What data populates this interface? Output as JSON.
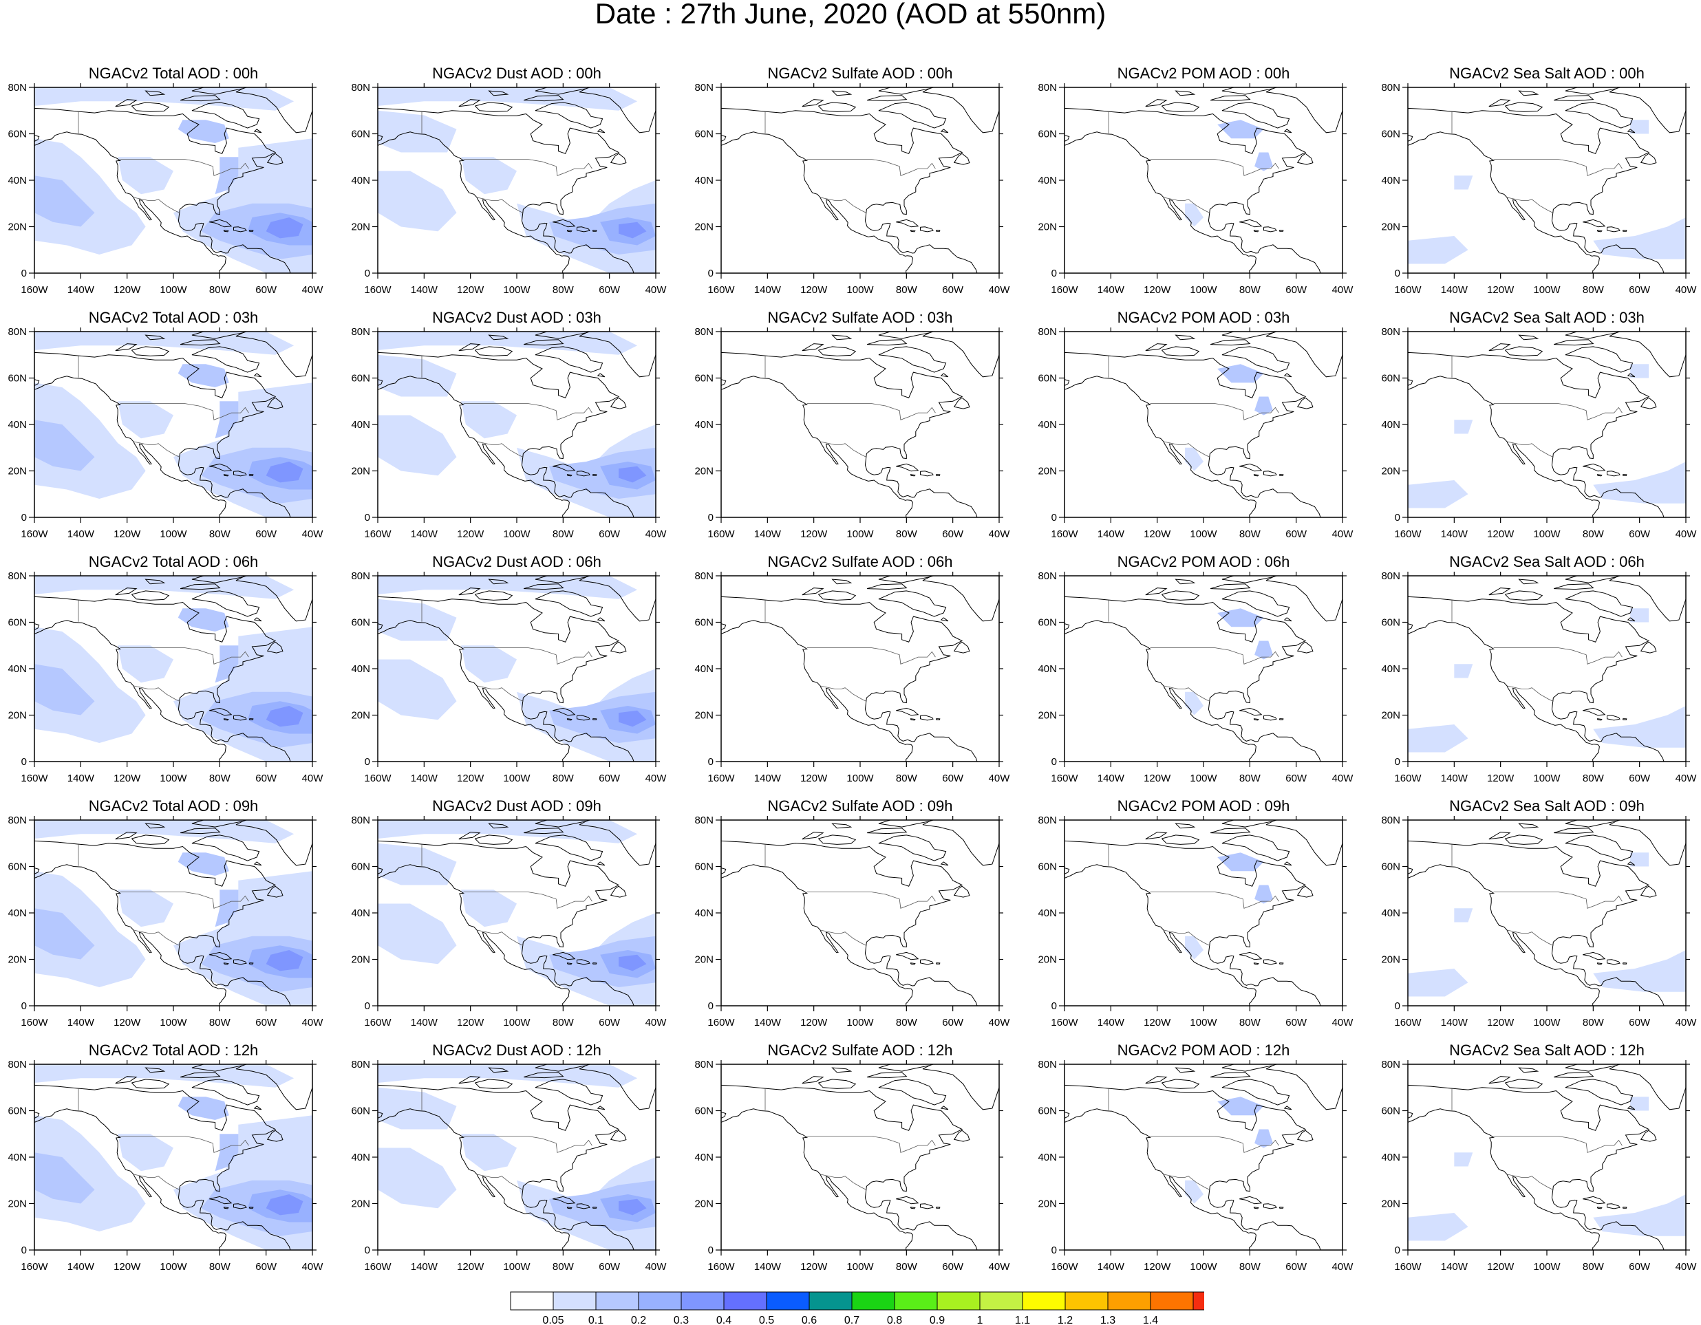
{
  "title": "Date : 27th June, 2020 (AOD at 550nm)",
  "colors": {
    "levels": [
      "#ffffff",
      "#d4e0ff",
      "#b5c8ff",
      "#98b1ff",
      "#7f96ff",
      "#6470ff",
      "#0a5cff",
      "#05948f",
      "#1ad414",
      "#5aee18",
      "#a8f020",
      "#c4f244",
      "#fdfb00",
      "#fdc400",
      "#fd9f00",
      "#fd7400",
      "#f52d10"
    ],
    "coast": "#000000"
  },
  "colorbar": {
    "labels": [
      "0.05",
      "0.1",
      "0.2",
      "0.3",
      "0.4",
      "0.5",
      "0.6",
      "0.7",
      "0.8",
      "0.9",
      "1",
      "1.1",
      "1.2",
      "1.3",
      "1.4"
    ]
  },
  "axes": {
    "lon_labels": [
      "160W",
      "140W",
      "120W",
      "100W",
      "80W",
      "60W",
      "40W"
    ],
    "lat_labels": [
      "0",
      "20N",
      "40N",
      "60N",
      "80N"
    ]
  },
  "rows": [
    {
      "hour": "00h",
      "titles": [
        "NGACv2 Total AOD : 00h",
        "NGACv2 Dust AOD : 00h",
        "NGACv2 Sulfate AOD : 00h",
        "NGACv2 POM AOD : 00h",
        "NGACv2 Sea Salt AOD : 00h"
      ]
    },
    {
      "hour": "03h",
      "titles": [
        "NGACv2 Total AOD : 03h",
        "NGACv2 Dust AOD : 03h",
        "NGACv2 Sulfate AOD : 03h",
        "NGACv2 POM AOD : 03h",
        "NGACv2 Sea Salt AOD : 03h"
      ]
    },
    {
      "hour": "06h",
      "titles": [
        "NGACv2 Total AOD : 06h",
        "NGACv2 Dust AOD : 06h",
        "NGACv2 Sulfate AOD : 06h",
        "NGACv2 POM AOD : 06h",
        "NGACv2 Sea Salt AOD : 06h"
      ]
    },
    {
      "hour": "09h",
      "titles": [
        "NGACv2 Total AOD : 09h",
        "NGACv2 Dust AOD : 09h",
        "NGACv2 Sulfate AOD : 09h",
        "NGACv2 POM AOD : 09h",
        "NGACv2 Sea Salt  AOD : 09h"
      ]
    },
    {
      "hour": "12h",
      "titles": [
        "NGACv2 Total AOD  : 12h",
        "NGACv2 Dust AOD : 12h",
        "NGACv2 Sulfate AOD : 12h",
        "NGACv2 POM  AOD : 12h",
        "NGACv2 Sea Salt  AOD : 12h"
      ]
    }
  ]
}
